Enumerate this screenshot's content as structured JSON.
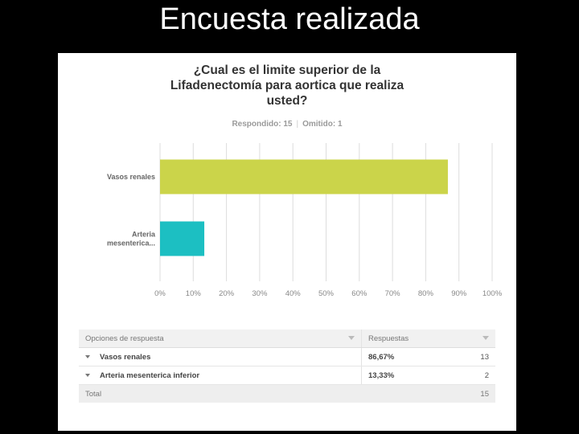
{
  "slide": {
    "title": "Encuesta realizada"
  },
  "survey": {
    "title_lines": [
      "¿Cual es el limite superior de la",
      "Lifadenectomía para aortica que realiza",
      "usted?"
    ],
    "answered": "Respondido: 15",
    "skipped": "Omitido: 1"
  },
  "chart_data": {
    "type": "bar",
    "orientation": "horizontal",
    "categories": [
      "Vasos renales",
      "Arteria mesenterica..."
    ],
    "values": [
      86.67,
      13.33
    ],
    "colors": [
      "#cbd44a",
      "#1cbfc2"
    ],
    "xlim": [
      0,
      100
    ],
    "xticks": [
      0,
      10,
      20,
      30,
      40,
      50,
      60,
      70,
      80,
      90,
      100
    ],
    "xtick_labels": [
      "0%",
      "10%",
      "20%",
      "30%",
      "40%",
      "50%",
      "60%",
      "70%",
      "80%",
      "90%",
      "100%"
    ],
    "grid": true,
    "grid_color": "#dddddd",
    "legend": "none"
  },
  "table": {
    "headers": {
      "options": "Opciones de respuesta",
      "responses": "Respuestas"
    },
    "rows": [
      {
        "option": "Vasos renales",
        "percent": "86,67%",
        "count": "13"
      },
      {
        "option": "Arteria mesenterica inferior",
        "percent": "13,33%",
        "count": "2"
      }
    ],
    "total_label": "Total",
    "total": "15"
  },
  "colors": {
    "page_bg": "#000000",
    "panel_bg": "#ffffff"
  }
}
